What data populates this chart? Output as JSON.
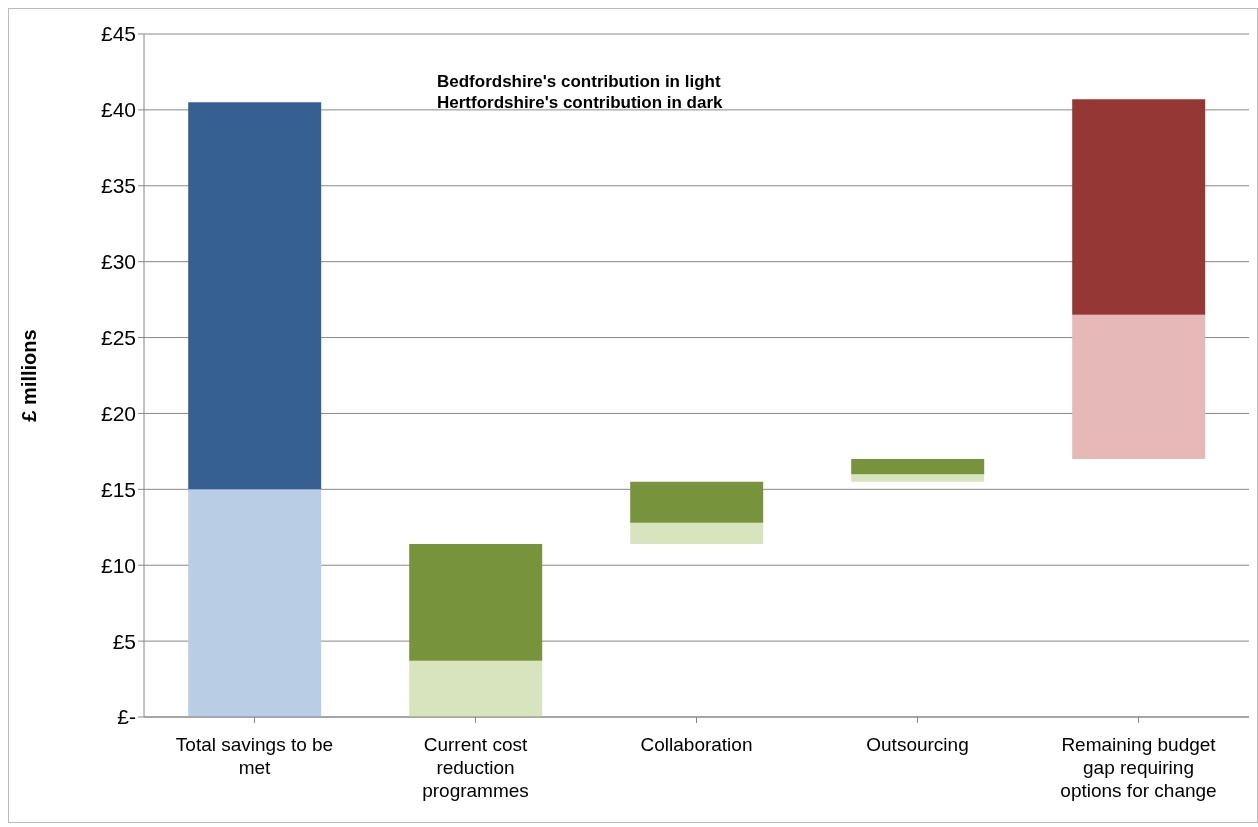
{
  "chart_data": {
    "type": "bar",
    "ylabel": "£ millions",
    "categories": [
      "Total savings to be met",
      "Current cost reduction programmes",
      "Collaboration",
      "Outsourcing",
      "Remaining budget gap requiring options for change"
    ],
    "series": [
      {
        "colors": [
          "#b9cde5",
          "#d7e4bd",
          "#d7e4bd",
          "#d7e4bd",
          "#e6b9b8"
        ],
        "base": [
          0,
          0,
          11.4,
          15.5,
          17.0
        ],
        "values": [
          15,
          3.7,
          1.4,
          0.5,
          9.5
        ]
      },
      {
        "colors": [
          "#376092",
          "#77933c",
          "#77933c",
          "#77933c",
          "#953735"
        ],
        "base": [
          15,
          3.7,
          12.8,
          16.0,
          26.5
        ],
        "values": [
          25.5,
          7.7,
          2.7,
          1.0,
          14.2
        ]
      }
    ],
    "ylim": [
      0,
      45
    ],
    "yticks": [
      {
        "value": 0,
        "label": "£-"
      },
      {
        "value": 5,
        "label": "£5"
      },
      {
        "value": 10,
        "label": "£10"
      },
      {
        "value": 15,
        "label": "£15"
      },
      {
        "value": 20,
        "label": "£20"
      },
      {
        "value": 25,
        "label": "£25"
      },
      {
        "value": 30,
        "label": "£30"
      },
      {
        "value": 35,
        "label": "£35"
      },
      {
        "value": 40,
        "label": "£40"
      },
      {
        "value": 45,
        "label": "£45"
      }
    ],
    "grid": "y",
    "annotations": [
      "Bedfordshire's contribution in light",
      "Hertfordshire's contribution in dark"
    ]
  }
}
